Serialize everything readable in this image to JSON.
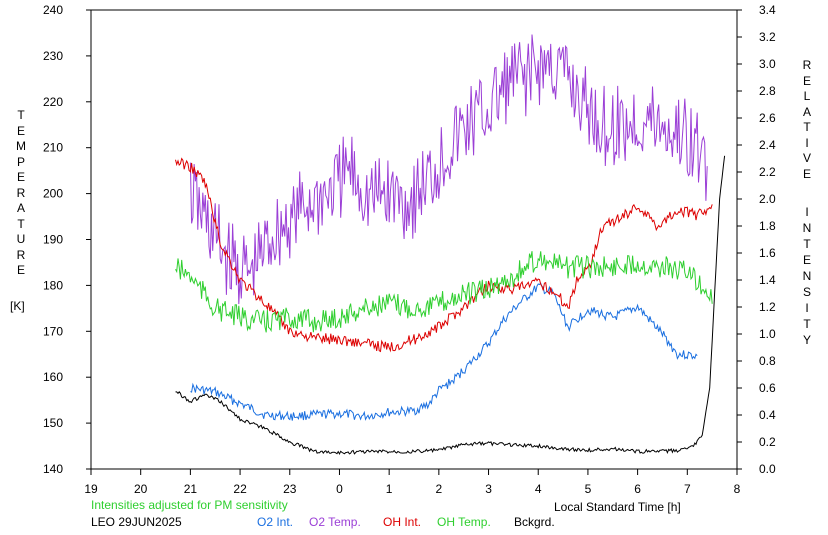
{
  "chart_data": {
    "type": "line",
    "left_axis": {
      "title_letters": [
        "T",
        "E",
        "M",
        "P",
        "E",
        "R",
        "A",
        "T",
        "U",
        "R",
        "E"
      ],
      "unit": "[K]",
      "ylim": [
        140,
        240
      ],
      "ticks": [
        140,
        150,
        160,
        170,
        180,
        190,
        200,
        210,
        220,
        230,
        240
      ]
    },
    "right_axis": {
      "title_word1": [
        "R",
        "E",
        "L",
        "A",
        "T",
        "I",
        "V",
        "E"
      ],
      "title_word2": [
        "I",
        "N",
        "T",
        "E",
        "N",
        "S",
        "I",
        "T",
        "Y"
      ],
      "ylim": [
        0.0,
        3.4
      ],
      "ticks": [
        "0.0",
        "0.2",
        "0.4",
        "0.6",
        "0.8",
        "1.0",
        "1.2",
        "1.4",
        "1.6",
        "1.8",
        "2.0",
        "2.2",
        "2.4",
        "2.6",
        "2.8",
        "3.0",
        "3.2",
        "3.4"
      ]
    },
    "x_axis": {
      "title": "Local Standard Time [h]",
      "tick_labels": [
        "19",
        "20",
        "21",
        "22",
        "23",
        "0",
        "1",
        "2",
        "3",
        "4",
        "5",
        "6",
        "7",
        "8"
      ],
      "xlim": [
        19,
        32
      ]
    },
    "grid": false,
    "series": [
      {
        "name": "O2 Int.",
        "color": "#1a6fe0",
        "axis": "right",
        "x": [
          21.0,
          21.5,
          22.5,
          23.0,
          23.5,
          24.0,
          24.5,
          25.0,
          25.5,
          25.8,
          26.0,
          26.3,
          26.6,
          27.0,
          27.3,
          27.6,
          28.0,
          28.3,
          28.6,
          29.0,
          29.5,
          30.0,
          30.5,
          30.8,
          31.2
        ],
        "y": [
          0.6,
          0.57,
          0.4,
          0.39,
          0.4,
          0.41,
          0.39,
          0.42,
          0.43,
          0.48,
          0.58,
          0.66,
          0.77,
          0.93,
          1.1,
          1.22,
          1.35,
          1.3,
          1.05,
          1.18,
          1.12,
          1.2,
          1.0,
          0.85,
          0.84
        ]
      },
      {
        "name": "O2 Temp.",
        "color": "#9b3fd6",
        "axis": "left",
        "x": [
          21.0,
          21.4,
          21.8,
          22.2,
          22.6,
          23.0,
          23.4,
          23.8,
          24.2,
          24.6,
          25.0,
          25.4,
          25.8,
          26.2,
          26.6,
          27.0,
          27.4,
          27.8,
          28.2,
          28.6,
          29.0,
          29.4,
          29.8,
          30.2,
          30.6,
          31.0,
          31.4
        ],
        "y": [
          200,
          192,
          185,
          182,
          190,
          194,
          198,
          200,
          205,
          199,
          200,
          198,
          203,
          210,
          215,
          218,
          224,
          226,
          228,
          225,
          218,
          214,
          215,
          216,
          214,
          212,
          206
        ]
      },
      {
        "name": "OH Int.",
        "color": "#dd0000",
        "axis": "right",
        "x": [
          20.7,
          21.0,
          21.3,
          21.6,
          22.0,
          22.5,
          23.0,
          23.5,
          24.0,
          24.5,
          25.0,
          25.5,
          26.0,
          26.5,
          27.0,
          27.5,
          28.0,
          28.3,
          28.6,
          28.8,
          29.0,
          29.3,
          29.6,
          30.0,
          30.4,
          30.8,
          31.2,
          31.5
        ],
        "y": [
          2.28,
          2.24,
          2.12,
          1.68,
          1.4,
          1.23,
          1.02,
          0.97,
          0.96,
          0.93,
          0.9,
          0.96,
          1.05,
          1.2,
          1.36,
          1.33,
          1.38,
          1.32,
          1.2,
          1.42,
          1.48,
          1.8,
          1.85,
          1.95,
          1.8,
          1.92,
          1.88,
          1.96
        ]
      },
      {
        "name": "OH Temp.",
        "color": "#2fcf2f",
        "axis": "left",
        "x": [
          20.7,
          21.0,
          21.5,
          22.0,
          22.5,
          23.0,
          23.5,
          24.0,
          24.5,
          25.0,
          25.5,
          26.0,
          26.5,
          27.0,
          27.5,
          28.0,
          28.5,
          29.0,
          29.5,
          30.0,
          30.5,
          31.0,
          31.4,
          31.5
        ],
        "y": [
          184,
          182,
          175,
          173,
          172,
          173,
          172,
          173,
          175,
          176,
          175,
          176,
          178,
          179,
          182,
          186,
          184,
          184,
          184,
          185,
          184,
          183,
          179,
          176
        ]
      },
      {
        "name": "Bckgrd.",
        "color": "#000000",
        "axis": "right",
        "x": [
          20.7,
          21.0,
          21.3,
          21.6,
          22.0,
          22.5,
          23.0,
          23.5,
          24.0,
          24.5,
          25.0,
          25.5,
          26.0,
          26.5,
          27.0,
          27.5,
          28.0,
          28.5,
          29.0,
          29.5,
          30.0,
          30.5,
          30.9,
          31.1,
          31.3,
          31.45,
          31.55,
          31.65,
          31.75
        ],
        "y": [
          0.58,
          0.5,
          0.55,
          0.5,
          0.37,
          0.3,
          0.2,
          0.13,
          0.12,
          0.13,
          0.13,
          0.13,
          0.14,
          0.18,
          0.19,
          0.18,
          0.17,
          0.15,
          0.14,
          0.15,
          0.13,
          0.13,
          0.14,
          0.16,
          0.25,
          0.6,
          1.3,
          2.0,
          2.32
        ]
      }
    ]
  },
  "footer": {
    "note": "Intensities adjusted for PM sensitivity",
    "station": "LEO 29JUN2025",
    "note_color": "#2fcf2f"
  }
}
